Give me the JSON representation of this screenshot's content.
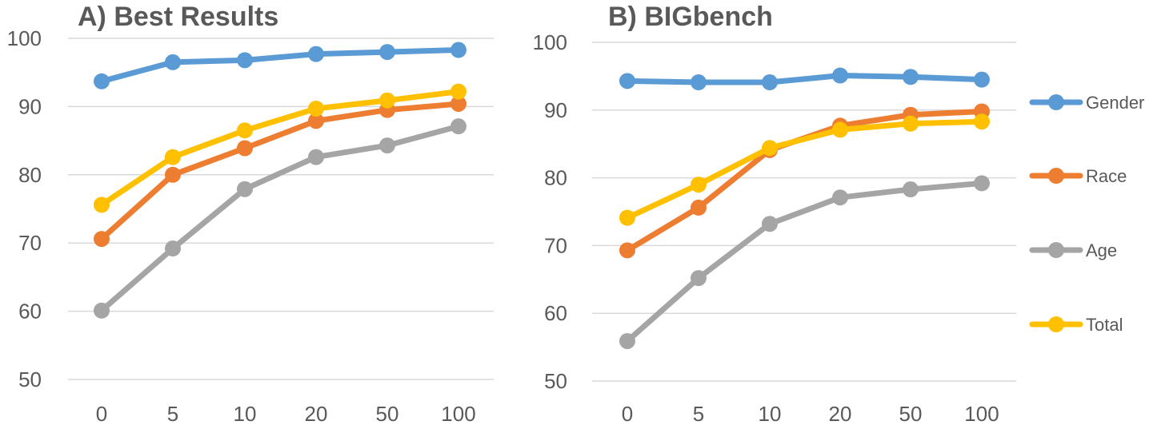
{
  "chart_data": [
    {
      "type": "line",
      "title": "A) Best Results",
      "xlabel": "",
      "ylabel": "",
      "categories": [
        "0",
        "5",
        "10",
        "20",
        "50",
        "100"
      ],
      "ylim": [
        50,
        100
      ],
      "yticks": [
        50,
        60,
        70,
        80,
        90,
        100
      ],
      "grid": true,
      "series": [
        {
          "name": "Gender",
          "color": "#5b9bd5",
          "values": [
            93.7,
            96.5,
            96.8,
            97.7,
            98.0,
            98.3
          ]
        },
        {
          "name": "Race",
          "color": "#ed7d31",
          "values": [
            70.6,
            80.0,
            83.9,
            87.9,
            89.5,
            90.4
          ]
        },
        {
          "name": "Age",
          "color": "#a5a5a5",
          "values": [
            60.1,
            69.2,
            77.9,
            82.6,
            84.3,
            87.1
          ]
        },
        {
          "name": "Total",
          "color": "#ffc000",
          "values": [
            75.6,
            82.6,
            86.5,
            89.7,
            90.9,
            92.2
          ]
        }
      ]
    },
    {
      "type": "line",
      "title": "B) BIGbench",
      "xlabel": "",
      "ylabel": "",
      "categories": [
        "0",
        "5",
        "10",
        "20",
        "50",
        "100"
      ],
      "ylim": [
        50,
        100
      ],
      "yticks": [
        50,
        60,
        70,
        80,
        90,
        100
      ],
      "grid": true,
      "legend": "right",
      "series": [
        {
          "name": "Gender",
          "color": "#5b9bd5",
          "values": [
            94.3,
            94.1,
            94.1,
            95.1,
            94.9,
            94.5
          ]
        },
        {
          "name": "Race",
          "color": "#ed7d31",
          "values": [
            69.3,
            75.6,
            84.1,
            87.7,
            89.3,
            89.8
          ]
        },
        {
          "name": "Age",
          "color": "#a5a5a5",
          "values": [
            55.9,
            65.2,
            73.2,
            77.1,
            78.3,
            79.2
          ]
        },
        {
          "name": "Total",
          "color": "#ffc000",
          "values": [
            74.1,
            79.0,
            84.4,
            87.1,
            88.0,
            88.3
          ]
        }
      ]
    }
  ]
}
